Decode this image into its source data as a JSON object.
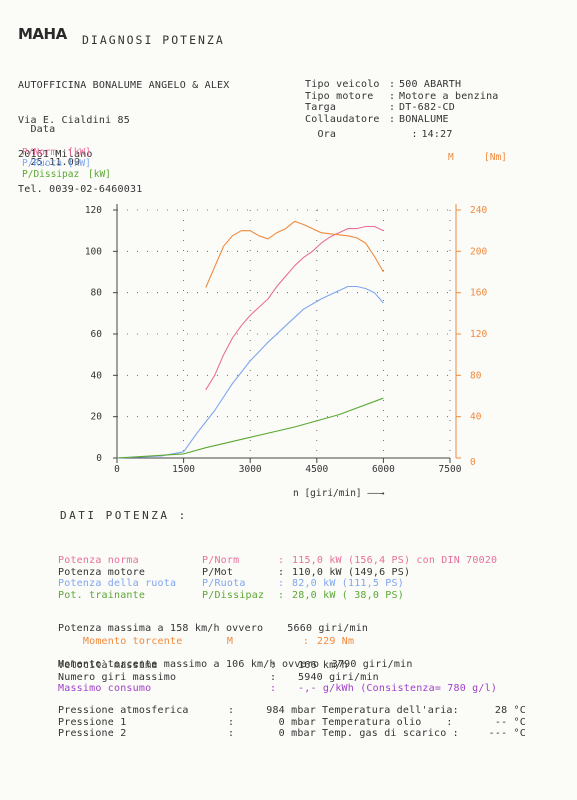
{
  "header": {
    "logo": "MAHA",
    "title": "DIAGNOSI POTENZA",
    "workshop": [
      "AUTOFFICINA BONALUME ANGELO & ALEX",
      "Via E. Cialdini 85",
      "20161 Milano",
      "Tel. 0039-02-6460031"
    ],
    "date_label": "Data",
    "date_sep": ":",
    "date_value": "25.11.09",
    "vehicle": [
      {
        "label": "Tipo veicolo",
        "sep": ":",
        "value": "500 ABARTH"
      },
      {
        "label": "Tipo motore",
        "sep": ":",
        "value": "Motore a benzina"
      },
      {
        "label": "Targa",
        "sep": ":",
        "value": "DT-682-CD"
      },
      {
        "label": "Collaudatore",
        "sep": ":",
        "value": "BONALUME"
      }
    ],
    "time_label": "Ora",
    "time_sep": ":",
    "time_value": "14:27"
  },
  "colors": {
    "norm": "#e8709c",
    "ruota": "#7fa6f0",
    "dissipaz": "#5ba832",
    "torque": "#f08a3c",
    "consumo": "#a040c8",
    "ink": "#333333"
  },
  "chart_data": {
    "type": "line",
    "legend_left": [
      {
        "name": "P/Norm",
        "unit": "[kW]",
        "color": "#e8709c"
      },
      {
        "name": "P/Ruota",
        "unit": "[kW]",
        "color": "#7fa6f0"
      },
      {
        "name": "P/Dissipaz",
        "unit": "[kW]",
        "color": "#5ba832"
      }
    ],
    "legend_right": {
      "name": "M",
      "unit": "[Nm]",
      "color": "#f08a3c"
    },
    "xlabel": "n [giri/min] ——→",
    "xlim": [
      0,
      7500
    ],
    "ylim": [
      0,
      120
    ],
    "y2lim": [
      0,
      240
    ],
    "x_ticks": [
      0,
      1500,
      3000,
      4500,
      6000,
      7500
    ],
    "y_ticks": [
      0,
      20,
      40,
      60,
      80,
      100,
      120
    ],
    "y2_ticks": [
      0,
      40,
      80,
      120,
      160,
      200,
      240
    ],
    "series": [
      {
        "name": "P/Norm",
        "axis": "left",
        "color": "#e8709c",
        "x": [
          2000,
          2200,
          2400,
          2600,
          2800,
          3000,
          3200,
          3400,
          3600,
          3800,
          4000,
          4200,
          4400,
          4600,
          4800,
          5000,
          5200,
          5400,
          5600,
          5800,
          6000
        ],
        "y": [
          33,
          40,
          50,
          58,
          64,
          69,
          73,
          77,
          83,
          88,
          93,
          97,
          100,
          104,
          107,
          109,
          111,
          111,
          112,
          112,
          110
        ]
      },
      {
        "name": "P/Ruota",
        "axis": "left",
        "color": "#7fa6f0",
        "x": [
          0,
          1000,
          1500,
          1800,
          2200,
          2600,
          3000,
          3400,
          3800,
          4200,
          4600,
          5000,
          5200,
          5400,
          5600,
          5800,
          6000
        ],
        "y": [
          0,
          1,
          3,
          12,
          23,
          36,
          47,
          56,
          64,
          72,
          77,
          81,
          83,
          83,
          82,
          80,
          75
        ]
      },
      {
        "name": "P/Dissipaz",
        "axis": "left",
        "color": "#5ba832",
        "x": [
          0,
          1500,
          2000,
          3000,
          4000,
          5000,
          6000
        ],
        "y": [
          0,
          2,
          5,
          10,
          15,
          21,
          29
        ]
      },
      {
        "name": "M",
        "axis": "right",
        "color": "#f08a3c",
        "x": [
          2000,
          2200,
          2400,
          2600,
          2800,
          3000,
          3200,
          3400,
          3600,
          3800,
          4000,
          4200,
          4400,
          4600,
          4800,
          5000,
          5200,
          5400,
          5600,
          5800,
          6000
        ],
        "y": [
          165,
          185,
          205,
          215,
          220,
          220,
          215,
          212,
          218,
          222,
          229,
          226,
          222,
          218,
          217,
          216,
          215,
          213,
          208,
          195,
          180
        ]
      }
    ]
  },
  "dati": {
    "title": "DATI POTENZA :",
    "rows1": [
      {
        "label": "Potenza norma",
        "sym": "P/Norm",
        "sep": ":",
        "value": "115,0 kW (156,4 PS) con DIN 70020",
        "color": "#e8709c"
      },
      {
        "label": "Potenza motore",
        "sym": "P/Mot",
        "sep": ":",
        "value": "110,0 kW (149,6 PS)",
        "color": "#333333"
      },
      {
        "label": "Potenza della ruota",
        "sym": "P/Ruota",
        "sep": ":",
        "value": "82,0 kW (111,5 PS)",
        "color": "#7fa6f0"
      },
      {
        "label": "Pot. trainante",
        "sym": "P/Dissipaz",
        "sep": ":",
        "value": "28,0 kW ( 38,0 PS)",
        "color": "#5ba832"
      }
    ],
    "max_power_line": "Potenza massima a 158 km/h ovvero",
    "max_power_rpm": "5660 giri/min",
    "torque_label": "Momento torcente",
    "torque_sym": "M",
    "torque_sep": ":",
    "torque_value": "229 Nm",
    "max_torque_line": "Momento torcente massimo a 106 km/h ovvero  3790 giri/min",
    "rows2": [
      {
        "label": "Velocità massima",
        "sep": ":",
        "value": "166 km/h",
        "color": "#333333"
      },
      {
        "label": "Numero giri massimo",
        "sep": ":",
        "value": "5940 giri/min",
        "color": "#333333"
      },
      {
        "label": "Massimo consumo",
        "sep": ":",
        "value": "-,- g/kWh (Consistenza= 780 g/l)",
        "color": "#a040c8"
      }
    ],
    "rows3": [
      {
        "label": "Pressione atmosferica",
        "sep": ":",
        "value": "984 mbar",
        "label2": "Temperatura dell'aria:",
        "value2": "28 °C"
      },
      {
        "label": "Pressione 1",
        "sep": ":",
        "value": "0 mbar",
        "label2": "Temperatura olio    :",
        "value2": "-- °C"
      },
      {
        "label": "Pressione 2",
        "sep": ":",
        "value": "0 mbar",
        "label2": "Temp. gas di scarico :",
        "value2": "--- °C"
      }
    ]
  }
}
